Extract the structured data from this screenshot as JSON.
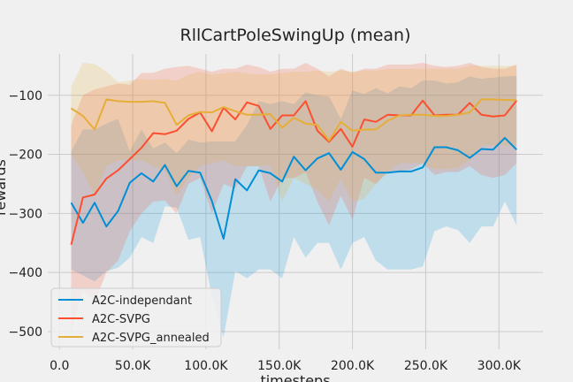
{
  "chart_data": {
    "type": "line",
    "title": "RllCartPoleSwingUp (mean)",
    "xlabel": "timesteps",
    "ylabel": "rewards",
    "xlim": [
      -8000,
      330000
    ],
    "ylim": [
      -530,
      -30
    ],
    "xticks": [
      {
        "value": 0,
        "label": "0.0"
      },
      {
        "value": 50000,
        "label": "50.0K"
      },
      {
        "value": 100000,
        "label": "100.0K"
      },
      {
        "value": 150000,
        "label": "150.0K"
      },
      {
        "value": 200000,
        "label": "200.0K"
      },
      {
        "value": 250000,
        "label": "250.0K"
      },
      {
        "value": 300000,
        "label": "300.0K"
      }
    ],
    "yticks": [
      {
        "value": -500,
        "label": "−500"
      },
      {
        "value": -400,
        "label": "−400"
      },
      {
        "value": -300,
        "label": "−300"
      },
      {
        "value": -200,
        "label": "−200"
      },
      {
        "value": -100,
        "label": "−100"
      }
    ],
    "grid": true,
    "legend_position": "lower-left",
    "x": [
      8000,
      16000,
      24000,
      32000,
      40000,
      48000,
      56000,
      64000,
      72000,
      80000,
      88000,
      96000,
      104000,
      112000,
      120000,
      128000,
      136000,
      144000,
      152000,
      160000,
      168000,
      176000,
      184000,
      192000,
      200000,
      208000,
      216000,
      224000,
      232000,
      240000,
      248000,
      256000,
      264000,
      272000,
      280000,
      288000,
      296000,
      304000,
      312000
    ],
    "series": [
      {
        "name": "A2C-independant",
        "color": "#008fd5",
        "values": [
          -282,
          -316,
          -282,
          -322,
          -296,
          -248,
          -232,
          -246,
          -218,
          -254,
          -228,
          -231,
          -279,
          -343,
          -242,
          -261,
          -227,
          -232,
          -246,
          -204,
          -227,
          -207,
          -198,
          -226,
          -196,
          -208,
          -231,
          -231,
          -229,
          -229,
          -222,
          -188,
          -188,
          -193,
          -206,
          -191,
          -192,
          -172,
          -192
        ],
        "upper": [
          -195,
          -158,
          -158,
          -148,
          -140,
          -195,
          -158,
          -190,
          -180,
          -198,
          -175,
          -180,
          -178,
          -178,
          -178,
          -150,
          -110,
          -115,
          -110,
          -115,
          -95,
          -100,
          -102,
          -140,
          -92,
          -98,
          -88,
          -97,
          -85,
          -88,
          -75,
          -75,
          -80,
          -78,
          -68,
          -72,
          -70,
          -68,
          -67
        ],
        "lower": [
          -395,
          -405,
          -415,
          -398,
          -392,
          -375,
          -340,
          -350,
          -288,
          -290,
          -345,
          -340,
          -440,
          -510,
          -398,
          -410,
          -395,
          -395,
          -410,
          -340,
          -375,
          -350,
          -350,
          -395,
          -350,
          -340,
          -380,
          -395,
          -395,
          -395,
          -390,
          -330,
          -322,
          -328,
          -350,
          -322,
          -322,
          -280,
          -320
        ]
      },
      {
        "name": "A2C-SVPG",
        "color": "#fc4f30",
        "values": [
          -353,
          -273,
          -268,
          -241,
          -227,
          -208,
          -189,
          -164,
          -166,
          -160,
          -140,
          -129,
          -161,
          -121,
          -141,
          -112,
          -118,
          -157,
          -134,
          -134,
          -110,
          -160,
          -179,
          -157,
          -187,
          -141,
          -145,
          -133,
          -134,
          -134,
          -109,
          -134,
          -133,
          -133,
          -113,
          -133,
          -136,
          -134,
          -109
        ],
        "upper": [
          -150,
          -100,
          -90,
          -85,
          -80,
          -82,
          -62,
          -62,
          -55,
          -52,
          -50,
          -55,
          -60,
          -55,
          -55,
          -48,
          -52,
          -60,
          -55,
          -55,
          -45,
          -55,
          -68,
          -55,
          -62,
          -55,
          -55,
          -48,
          -48,
          -48,
          -45,
          -50,
          -52,
          -50,
          -45,
          -52,
          -55,
          -55,
          -48
        ],
        "lower": [
          -500,
          -430,
          -450,
          -400,
          -380,
          -330,
          -300,
          -280,
          -278,
          -300,
          -250,
          -240,
          -300,
          -250,
          -258,
          -220,
          -220,
          -280,
          -240,
          -240,
          -230,
          -280,
          -320,
          -270,
          -310,
          -240,
          -250,
          -230,
          -230,
          -225,
          -215,
          -235,
          -230,
          -230,
          -220,
          -235,
          -240,
          -235,
          -215
        ]
      },
      {
        "name": "A2C-SVPG_annealed",
        "color": "#e5ae38",
        "values": [
          -122,
          -135,
          -158,
          -107,
          -110,
          -111,
          -111,
          -110,
          -113,
          -150,
          -134,
          -128,
          -129,
          -120,
          -127,
          -133,
          -133,
          -132,
          -155,
          -138,
          -148,
          -150,
          -177,
          -145,
          -160,
          -158,
          -158,
          -143,
          -134,
          -133,
          -133,
          -135,
          -135,
          -133,
          -129,
          -107,
          -107,
          -108,
          -108
        ],
        "upper": [
          -85,
          -45,
          -47,
          -60,
          -78,
          -75,
          -72,
          -74,
          -72,
          -75,
          -65,
          -60,
          -65,
          -63,
          -60,
          -63,
          -65,
          -65,
          -62,
          -60,
          -60,
          -58,
          -60,
          -58,
          -60,
          -58,
          -58,
          -55,
          -55,
          -55,
          -55,
          -55,
          -55,
          -55,
          -50,
          -50,
          -50,
          -50,
          -50
        ],
        "lower": [
          -200,
          -230,
          -270,
          -220,
          -210,
          -210,
          -210,
          -220,
          -228,
          -270,
          -240,
          -220,
          -215,
          -210,
          -220,
          -220,
          -220,
          -218,
          -280,
          -240,
          -250,
          -260,
          -280,
          -240,
          -280,
          -275,
          -250,
          -230,
          -215,
          -215,
          -215,
          -225,
          -225,
          -222,
          -210,
          -185,
          -185,
          -185,
          -185
        ]
      }
    ]
  }
}
